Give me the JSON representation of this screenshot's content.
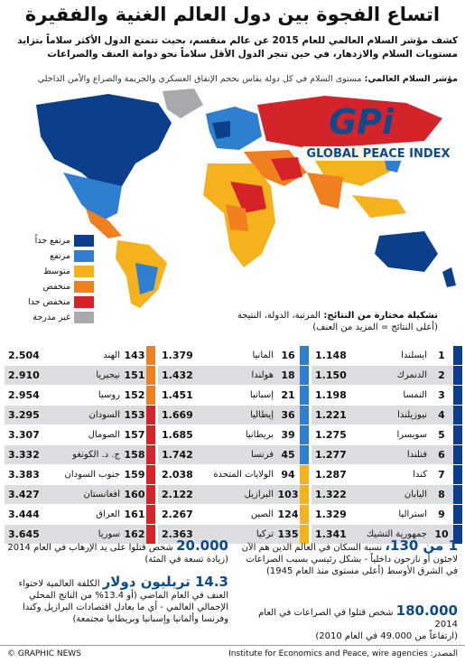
{
  "title": "اتساع الفجوة بين دول العالم الغنية والفقيرة",
  "intro": "كشف مؤشر السلام العالمي للعام 2015 عن عالم منقسم، بحيث تتمتع الدول الأكثر سلاماً بتزايد مستويات السلام والازدهار، في حين تنجر الدول الأقل سلاماً نحو دوامة العنف والصراعات",
  "index_note": {
    "label": "مؤشر السلام العالمي:",
    "text": "مستوى السلام في كل دولة يقاس بحجم الإنفاق العسكري والجريمة والصراع والأمن الداخلي"
  },
  "logo": {
    "mark": "GPi",
    "name": "GLOBAL PEACE INDEX"
  },
  "legend": [
    {
      "label": "مرتفع جداً",
      "color": "#0b3f8a"
    },
    {
      "label": "مرتفع",
      "color": "#2f7fd1"
    },
    {
      "label": "متوسط",
      "color": "#f6b21c"
    },
    {
      "label": "منخفض",
      "color": "#f07f1f"
    },
    {
      "label": "منخفض جدا",
      "color": "#d4242a"
    },
    {
      "label": "غير مدرجة",
      "color": "#a7a9ac"
    }
  ],
  "table": {
    "heading": "تشكيلة مختارة من النتائج:",
    "heading_cols": "المرتبة، الدولة، النتيجة",
    "note": "(أعلى النتائج = المزيد من العنف)",
    "columns": [
      [
        [
          "1",
          "أيسلندا",
          "1.148"
        ],
        [
          "2",
          "الدنمرك",
          "1.150"
        ],
        [
          "3",
          "النمسا",
          "1.198"
        ],
        [
          "4",
          "نيوزيلندا",
          "1.221"
        ],
        [
          "5",
          "سويسرا",
          "1.275"
        ],
        [
          "6",
          "فنلندا",
          "1.277"
        ],
        [
          "7",
          "كندا",
          "1.287"
        ],
        [
          "8",
          "اليابان",
          "1.322"
        ],
        [
          "9",
          "أستراليا",
          "1.329"
        ],
        [
          "10",
          "جمهورية التشيك",
          "1.341"
        ]
      ],
      [
        [
          "16",
          "ألمانيا",
          "1.379"
        ],
        [
          "18",
          "هولندا",
          "1.432"
        ],
        [
          "21",
          "إسبانيا",
          "1.451"
        ],
        [
          "36",
          "إيطاليا",
          "1.669"
        ],
        [
          "39",
          "بريطانيا",
          "1.685"
        ],
        [
          "45",
          "فرنسا",
          "1.742"
        ],
        [
          "94",
          "الولايات المتحدة",
          "2.038"
        ],
        [
          "103",
          "البرازيل",
          "2.122"
        ],
        [
          "124",
          "الصين",
          "2.267"
        ],
        [
          "135",
          "تركيا",
          "2.363"
        ]
      ],
      [
        [
          "143",
          "الهند",
          "2.504"
        ],
        [
          "151",
          "نيجيريا",
          "2.910"
        ],
        [
          "152",
          "روسيا",
          "2.954"
        ],
        [
          "153",
          "السودان",
          "3.295"
        ],
        [
          "157",
          "الصومال",
          "3.307"
        ],
        [
          "158",
          "ج. د. الكونغو",
          "3.332"
        ],
        [
          "159",
          "جنوب السودان",
          "3.383"
        ],
        [
          "160",
          "أفغانستان",
          "3.427"
        ],
        [
          "161",
          "العراق",
          "3.444"
        ],
        [
          "162",
          "سوريا",
          "3.645"
        ]
      ]
    ]
  },
  "facts": [
    {
      "headline": "1 من 130،",
      "text": "نسبة السكان في العالم الذين هم الآن لاجئون أو نازحون داخلياً - بشكل رئيسي بسبب الصراعات في الشرق الأوسط (أعلى مستوى منذ العام 1945)"
    },
    {
      "headline": "20.000",
      "text": "شخص قتلوا على يد الإرهاب في العام 2014",
      "sub": "(زيادة تسعة في المئة)"
    },
    {
      "headline": "14.3 تريليون دولار",
      "text": "الكلفة العالمية لاحتواء العنف في العام الماضي (أو 13.4% من الناتج المحلي الإجمالي العالمي - أي ما يعادل اقتصادات البرازيل وكندا وفرنسا وألمانيا وإسبانيا وبريطانيا مجتمعة)"
    },
    {
      "headline": "180.000",
      "text": "شخص قتلوا في الصراعات في العام 2014",
      "sub": "(ارتفاعاً من 49.000 في العام 2010)"
    }
  ],
  "footer": {
    "credit": "© GRAPHIC NEWS",
    "source_label": "المصدر:",
    "source": "Institute for Economics and Peace, wire agencies"
  }
}
